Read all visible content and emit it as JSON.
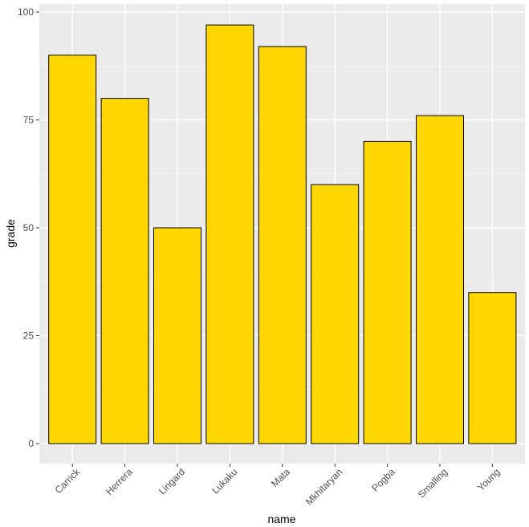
{
  "chart_data": {
    "type": "bar",
    "title": "",
    "xlabel": "name",
    "ylabel": "grade",
    "categories": [
      "Carrick",
      "Herrera",
      "Lingard",
      "Lukaku",
      "Mata",
      "Mkhitaryan",
      "Pogba",
      "Smalling",
      "Young"
    ],
    "values": [
      90,
      80,
      50,
      97,
      92,
      60,
      70,
      76,
      35
    ],
    "ylim": [
      0,
      100
    ],
    "yticks": [
      0,
      25,
      50,
      75,
      100
    ],
    "grid": true,
    "legend": "none",
    "colors": {
      "bar_fill": "#FFD700",
      "bar_stroke": "#000000",
      "panel_background": "#EBEBEB",
      "grid_major": "#FFFFFF",
      "grid_minor": "#F5F5F5"
    }
  }
}
